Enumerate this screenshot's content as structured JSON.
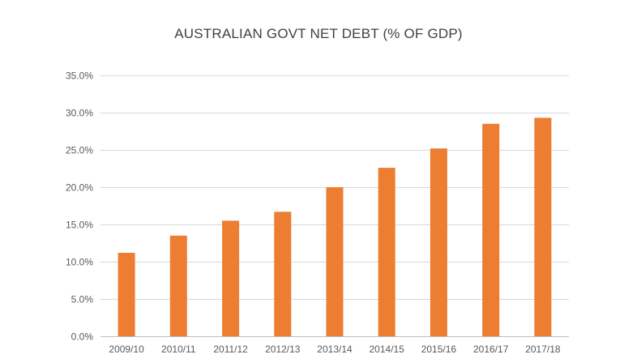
{
  "chart_data": {
    "type": "bar",
    "title": "AUSTRALIAN GOVT NET DEBT (% OF GDP)",
    "xlabel": "",
    "ylabel": "",
    "categories": [
      "2009/10",
      "2010/11",
      "2011/12",
      "2012/13",
      "2013/14",
      "2014/15",
      "2015/16",
      "2016/17",
      "2017/18"
    ],
    "series": [
      {
        "name": "Net debt (% of GDP)",
        "values": [
          11.2,
          13.5,
          15.5,
          16.7,
          20.0,
          22.6,
          25.2,
          28.5,
          29.3
        ]
      }
    ],
    "ylim": [
      0,
      35
    ],
    "yticks": [
      0,
      5,
      10,
      15,
      20,
      25,
      30,
      35
    ],
    "ytick_labels": [
      "0.0%",
      "5.0%",
      "10.0%",
      "15.0%",
      "20.0%",
      "25.0%",
      "30.0%",
      "35.0%"
    ],
    "grid": true,
    "legend": "none",
    "colors": {
      "bar": "#ED7D31",
      "grid": "#D9D9D9",
      "axis": "#BFBFBF",
      "text": "#595959",
      "title": "#404040"
    }
  }
}
